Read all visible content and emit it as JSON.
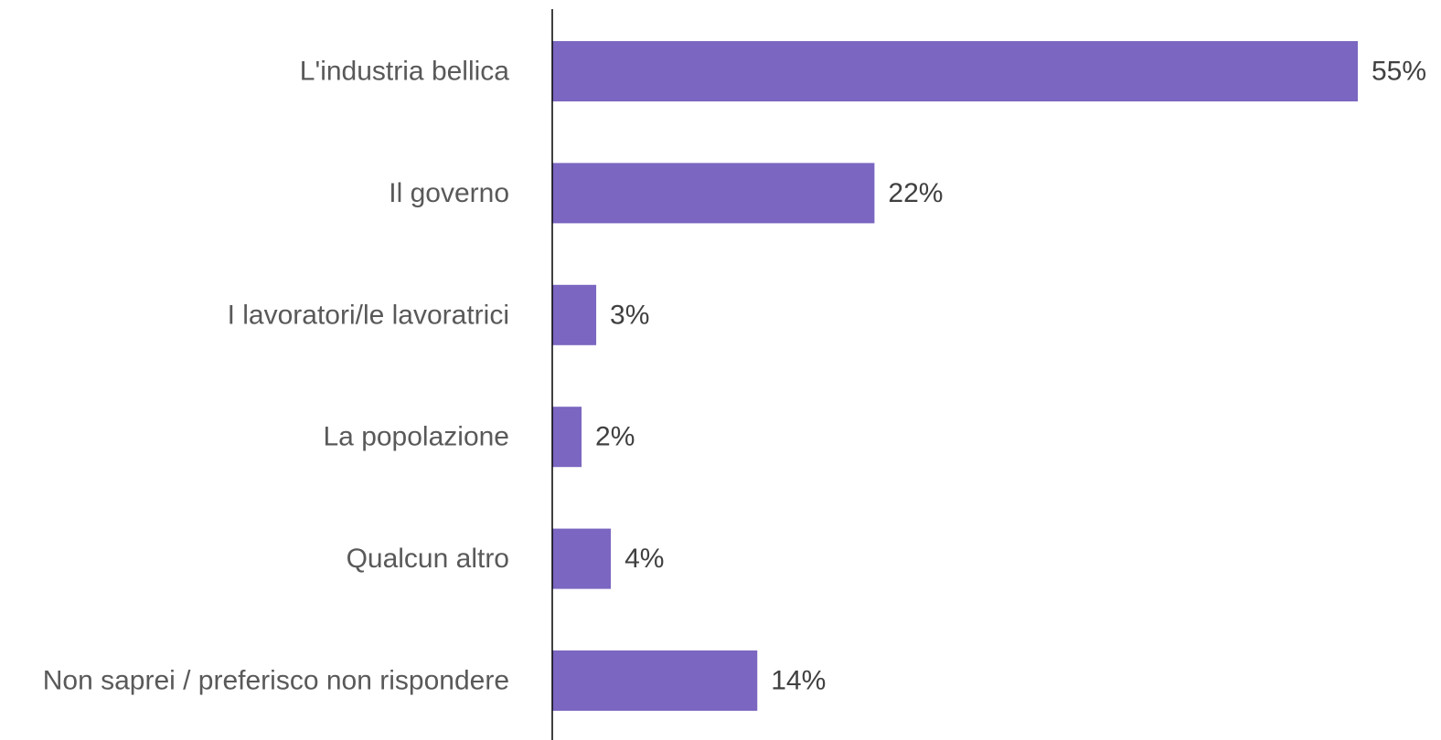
{
  "chart_data": {
    "type": "bar",
    "orientation": "horizontal",
    "categories": [
      "L'industria bellica",
      "Il governo",
      "I lavoratori/le lavoratrici",
      "La popolazione",
      "Qualcun altro",
      "Non saprei / preferisco non rispondere"
    ],
    "values": [
      55,
      22,
      3,
      2,
      4,
      14
    ],
    "value_labels": [
      "55%",
      "22%",
      "3%",
      "2%",
      "4%",
      "14%"
    ],
    "unit": "%",
    "xlim": [
      0,
      55
    ],
    "title": "",
    "xlabel": "",
    "ylabel": "",
    "grid": false,
    "legend": "none",
    "colors": {
      "bar": "#7B66C1",
      "axis": "#000000",
      "category_text": "#595959",
      "value_text": "#404040"
    }
  }
}
